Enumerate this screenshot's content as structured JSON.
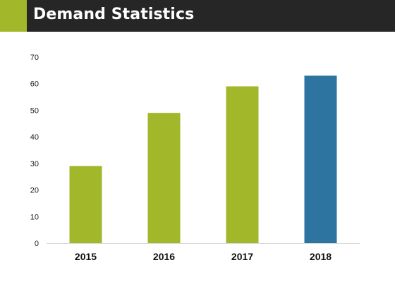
{
  "header": {
    "title": "Demand Statistics"
  },
  "colors": {
    "header_bg": "#262626",
    "accent": "#a3b72b",
    "bar_default": "#a3b72b",
    "bar_highlight": "#2e74a1"
  },
  "chart_data": {
    "type": "bar",
    "title": "",
    "xlabel": "",
    "ylabel": "",
    "categories": [
      "2015",
      "2016",
      "2017",
      "2018"
    ],
    "values": [
      29,
      49,
      59,
      63
    ],
    "bar_colors": [
      "#a3b72b",
      "#a3b72b",
      "#a3b72b",
      "#2e74a1"
    ],
    "ylim": [
      0,
      70
    ],
    "yticks": [
      0,
      10,
      20,
      30,
      40,
      50,
      60,
      70
    ],
    "grid": false,
    "legend": "none"
  }
}
